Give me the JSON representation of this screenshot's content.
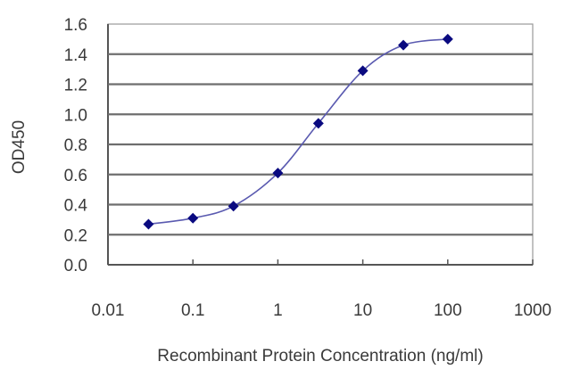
{
  "chart_data": {
    "type": "line",
    "title": "",
    "xlabel": "Recombinant Protein Concentration (ng/ml)",
    "ylabel": "OD450",
    "xscale": "log",
    "xlim": [
      0.01,
      1000
    ],
    "ylim": [
      0.0,
      1.6
    ],
    "grid": "horizontal",
    "legend": null,
    "x_ticks": [
      "0.01",
      "0.1",
      "1",
      "10",
      "100",
      "1000"
    ],
    "y_ticks": [
      "0.0",
      "0.2",
      "0.4",
      "0.6",
      "0.8",
      "1.0",
      "1.2",
      "1.4",
      "1.6"
    ],
    "series": [
      {
        "name": "OD450",
        "x": [
          0.03,
          0.1,
          0.3,
          1,
          3,
          10,
          30,
          100
        ],
        "values": [
          0.27,
          0.31,
          0.39,
          0.61,
          0.94,
          1.29,
          1.46,
          1.5
        ],
        "marker": "diamond",
        "marker_color": "#0a0a80",
        "line_color": "#5a5ab0",
        "smooth": true
      }
    ]
  },
  "colors": {
    "grid": "#6e6e6e",
    "frame": "#555555",
    "background": "#ffffff"
  }
}
